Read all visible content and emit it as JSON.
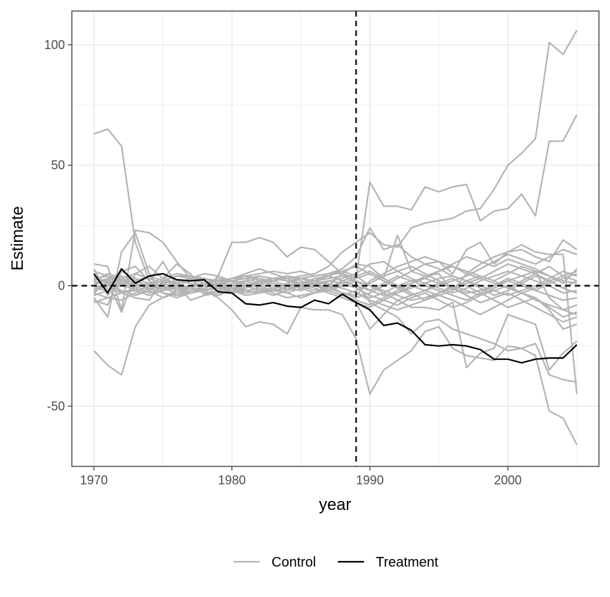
{
  "chart_data": {
    "type": "line",
    "title": "",
    "xlabel": "year",
    "ylabel": "Estimate",
    "xlim": [
      1968.4,
      2006.6
    ],
    "ylim": [
      -75,
      114
    ],
    "x_ticks": [
      1970,
      1980,
      1990,
      2000
    ],
    "y_ticks": [
      -50,
      0,
      50,
      100
    ],
    "x_tick_labels": [
      "1970",
      "1980",
      "1990",
      "2000"
    ],
    "y_tick_labels": [
      "-50",
      "0",
      "50",
      "100"
    ],
    "grid": true,
    "legend": {
      "position": "bottom",
      "entries": [
        "Control",
        "Treatment"
      ]
    },
    "colors": {
      "Control": "#b3b3b3",
      "Treatment": "#000000",
      "reference": "#000000",
      "grid": "#ebebeb"
    },
    "reference_lines": {
      "vertical_x": 1989,
      "horizontal_y": 0
    },
    "x": [
      1970,
      1971,
      1972,
      1973,
      1974,
      1975,
      1976,
      1977,
      1978,
      1979,
      1980,
      1981,
      1982,
      1983,
      1984,
      1985,
      1986,
      1987,
      1988,
      1989,
      1990,
      1991,
      1992,
      1993,
      1994,
      1995,
      1996,
      1997,
      1998,
      1999,
      2000,
      2001,
      2002,
      2003,
      2004,
      2005
    ],
    "series": [
      {
        "group": "Treatment",
        "values": [
          5,
          -3,
          7,
          1,
          4,
          5,
          2.5,
          2,
          2.5,
          -2.5,
          -3,
          -7.5,
          -8,
          -7,
          -8.5,
          -9,
          -6,
          -7.5,
          -3.5,
          -7,
          -10,
          -16.5,
          -15.5,
          -18.5,
          -24.5,
          -25,
          -24.5,
          -25,
          -26.5,
          -30.5,
          -30.5,
          -32,
          -30.5,
          -30,
          -30,
          -24.5
        ]
      },
      {
        "group": "Control",
        "values": [
          63,
          65,
          58,
          18,
          2,
          -1,
          -3,
          -2,
          -1,
          1,
          2,
          3,
          4,
          3,
          2,
          3,
          4,
          5,
          5,
          3,
          43,
          33,
          33,
          31.5,
          41,
          39,
          41,
          42,
          27,
          31,
          32,
          38,
          29,
          60,
          60,
          71
        ]
      },
      {
        "group": "Control",
        "values": [
          -27,
          -33,
          -37,
          -17,
          -8,
          -5,
          -2,
          0,
          1,
          2,
          2,
          3,
          1,
          2,
          3,
          4,
          5,
          8,
          14,
          18,
          22,
          17,
          16,
          24,
          26,
          27,
          28,
          31,
          32,
          40,
          50,
          55,
          61,
          101,
          96,
          106
        ]
      },
      {
        "group": "Control",
        "values": [
          9,
          8,
          -10,
          23,
          22,
          18,
          10,
          3,
          -2,
          -5,
          -10,
          -17,
          -15,
          -16,
          -20,
          -9,
          -10,
          -10,
          -12,
          -22,
          -45,
          -35,
          -31,
          -27,
          -19,
          -17,
          -26,
          -29,
          -30,
          -31,
          -25,
          -26,
          -29,
          -52,
          -55,
          -66
        ]
      },
      {
        "group": "Control",
        "values": [
          -5,
          -13,
          14,
          22,
          5,
          -3,
          -4,
          -3,
          -2,
          4,
          18,
          18,
          20,
          18,
          12,
          16,
          15,
          10,
          5,
          1,
          -7,
          -10,
          -13,
          -20,
          -15,
          -14,
          -18,
          -20,
          -22,
          -24,
          -27,
          -26,
          -24,
          -37,
          -39,
          -40
        ]
      },
      {
        "group": "Control",
        "values": [
          3,
          2,
          -11,
          5,
          8,
          3,
          9,
          5,
          -4,
          -3,
          -3,
          -2,
          -1,
          -3,
          -5,
          -4,
          -3,
          0,
          5,
          9,
          8,
          3,
          21,
          6,
          4,
          5,
          -2,
          5,
          9,
          12,
          14,
          17,
          14,
          13,
          13,
          -45
        ]
      },
      {
        "group": "Control",
        "values": [
          0,
          3,
          -3,
          -5,
          -6,
          2,
          4,
          4,
          3,
          2,
          3,
          4,
          5,
          6,
          5,
          6,
          4,
          5,
          7,
          12,
          24,
          15,
          17,
          12,
          9,
          10,
          5,
          15,
          18,
          9,
          14,
          15,
          12,
          10,
          19,
          15
        ]
      },
      {
        "group": "Control",
        "values": [
          -6,
          -8,
          6,
          8,
          2,
          10,
          0,
          -6,
          -4,
          -2,
          -1,
          0,
          2,
          3,
          2,
          1,
          -1,
          -3,
          -5,
          -7,
          -18,
          -12,
          -6,
          -9,
          -9,
          -10,
          -7,
          -34,
          -28,
          -26,
          -12,
          -14,
          -16,
          -35,
          -28,
          -23
        ]
      },
      {
        "group": "Control",
        "values": [
          7,
          -4,
          2,
          3,
          -2,
          -5,
          -3,
          -1,
          1,
          2,
          3,
          4,
          3,
          2,
          0,
          1,
          2,
          5,
          6,
          4,
          0,
          -2,
          -4,
          -6,
          -5,
          -3,
          -1,
          2,
          4,
          2,
          -1,
          -3,
          -5,
          -10,
          -18,
          -16
        ]
      },
      {
        "group": "Control",
        "values": [
          -3,
          2,
          6,
          3,
          1,
          -2,
          -1,
          0,
          1,
          0,
          -1,
          -2,
          -3,
          -2,
          -1,
          1,
          2,
          3,
          4,
          2,
          -2,
          -4,
          -3,
          -1,
          1,
          3,
          4,
          2,
          0,
          -2,
          -4,
          -2,
          0,
          3,
          6,
          4
        ]
      },
      {
        "group": "Control",
        "values": [
          2,
          5,
          3,
          -1,
          -3,
          -1,
          1,
          3,
          2,
          0,
          -2,
          -1,
          1,
          3,
          4,
          2,
          0,
          -2,
          -4,
          -6,
          -8,
          -5,
          -2,
          1,
          4,
          6,
          8,
          6,
          4,
          2,
          5,
          8,
          6,
          -5,
          -10,
          -8
        ]
      },
      {
        "group": "Control",
        "values": [
          -1,
          -2,
          1,
          2,
          4,
          2,
          0,
          -1,
          -2,
          -1,
          1,
          2,
          0,
          -2,
          -3,
          -1,
          1,
          2,
          3,
          5,
          9,
          10,
          6,
          3,
          1,
          -1,
          -3,
          -1,
          2,
          4,
          6,
          4,
          2,
          0,
          -3,
          -2
        ]
      },
      {
        "group": "Control",
        "values": [
          4,
          1,
          -2,
          -4,
          -1,
          1,
          2,
          1,
          0,
          -1,
          -2,
          -3,
          -2,
          -1,
          0,
          1,
          2,
          0,
          -1,
          -3,
          -5,
          -3,
          0,
          2,
          3,
          1,
          -1,
          -3,
          -2,
          0,
          2,
          4,
          6,
          4,
          2,
          1
        ]
      },
      {
        "group": "Control",
        "values": [
          -4,
          -2,
          0,
          1,
          -1,
          -3,
          -4,
          -2,
          0,
          1,
          2,
          1,
          -1,
          -2,
          -1,
          0,
          1,
          -1,
          -3,
          -4,
          2,
          5,
          8,
          10,
          12,
          10,
          8,
          5,
          3,
          6,
          9,
          7,
          5,
          2,
          -1,
          -3
        ]
      },
      {
        "group": "Control",
        "values": [
          1,
          3,
          4,
          2,
          0,
          -2,
          0,
          2,
          3,
          1,
          -1,
          0,
          2,
          1,
          -1,
          -2,
          0,
          2,
          1,
          -1,
          -4,
          -6,
          -8,
          -5,
          -3,
          -6,
          -9,
          -7,
          -4,
          -2,
          0,
          -3,
          -6,
          -8,
          -10,
          -12
        ]
      },
      {
        "group": "Control",
        "values": [
          -2,
          0,
          3,
          5,
          3,
          1,
          -1,
          -3,
          -1,
          1,
          0,
          -1,
          1,
          3,
          2,
          0,
          -2,
          -1,
          2,
          4,
          6,
          3,
          0,
          -3,
          -6,
          -4,
          -2,
          1,
          3,
          1,
          -1,
          2,
          5,
          8,
          4,
          2
        ]
      },
      {
        "group": "Control",
        "values": [
          6,
          4,
          2,
          0,
          1,
          3,
          1,
          -1,
          -3,
          -2,
          0,
          2,
          3,
          1,
          -1,
          1,
          3,
          4,
          2,
          0,
          -2,
          1,
          4,
          2,
          0,
          -2,
          -4,
          -6,
          -3,
          0,
          3,
          1,
          -2,
          -4,
          -6,
          -5
        ]
      },
      {
        "group": "Control",
        "values": [
          -7,
          -5,
          -3,
          -1,
          1,
          0,
          -2,
          -1,
          1,
          3,
          2,
          0,
          -2,
          -4,
          -2,
          0,
          2,
          1,
          -1,
          -3,
          -6,
          -8,
          -10,
          -8,
          -6,
          -3,
          0,
          -2,
          -4,
          -1,
          2,
          0,
          -2,
          1,
          3,
          5
        ]
      },
      {
        "group": "Control",
        "values": [
          0,
          -1,
          -3,
          -2,
          0,
          2,
          4,
          3,
          1,
          -1,
          -3,
          -1,
          1,
          2,
          4,
          3,
          1,
          -2,
          -4,
          -2,
          1,
          4,
          6,
          8,
          5,
          2,
          -1,
          -4,
          -7,
          -5,
          -3,
          -6,
          -9,
          -12,
          -15,
          -13
        ]
      },
      {
        "group": "Control",
        "values": [
          3,
          4,
          1,
          -2,
          -4,
          -2,
          1,
          3,
          5,
          4,
          2,
          0,
          -2,
          -1,
          1,
          3,
          2,
          0,
          -3,
          -5,
          -3,
          0,
          3,
          6,
          9,
          7,
          4,
          2,
          -1,
          -4,
          -2,
          1,
          4,
          2,
          -1,
          2
        ]
      },
      {
        "group": "Control",
        "values": [
          -3,
          -5,
          -6,
          -3,
          0,
          2,
          1,
          -1,
          -3,
          -4,
          -2,
          0,
          1,
          -1,
          -3,
          -5,
          -3,
          -1,
          1,
          3,
          5,
          2,
          -1,
          1,
          3,
          6,
          9,
          12,
          10,
          8,
          11,
          9,
          7,
          4,
          1,
          7
        ]
      },
      {
        "group": "Control",
        "values": [
          2,
          0,
          -2,
          -4,
          -2,
          1,
          -1,
          -3,
          -2,
          0,
          2,
          4,
          2,
          0,
          -2,
          0,
          2,
          4,
          6,
          8,
          5,
          2,
          -1,
          -4,
          -2,
          1,
          3,
          0,
          -3,
          -6,
          -9,
          -7,
          -5,
          -9,
          -13,
          -11
        ]
      },
      {
        "group": "Control",
        "values": [
          -1,
          1,
          3,
          1,
          -1,
          -3,
          -5,
          -3,
          -1,
          1,
          3,
          5,
          7,
          5,
          3,
          1,
          -1,
          -3,
          -5,
          -7,
          -9,
          -6,
          -3,
          0,
          -2,
          -4,
          -6,
          -9,
          -12,
          -9,
          -6,
          -3,
          -1,
          2,
          4,
          6
        ]
      },
      {
        "group": "Control",
        "values": [
          1,
          2,
          0,
          -1,
          1,
          3,
          5,
          4,
          2,
          0,
          -2,
          -4,
          -3,
          -1,
          1,
          -1,
          -3,
          -2,
          0,
          2,
          0,
          -3,
          -6,
          -4,
          -2,
          0,
          2,
          4,
          7,
          10,
          13,
          11,
          9,
          12,
          15,
          13
        ]
      }
    ]
  }
}
